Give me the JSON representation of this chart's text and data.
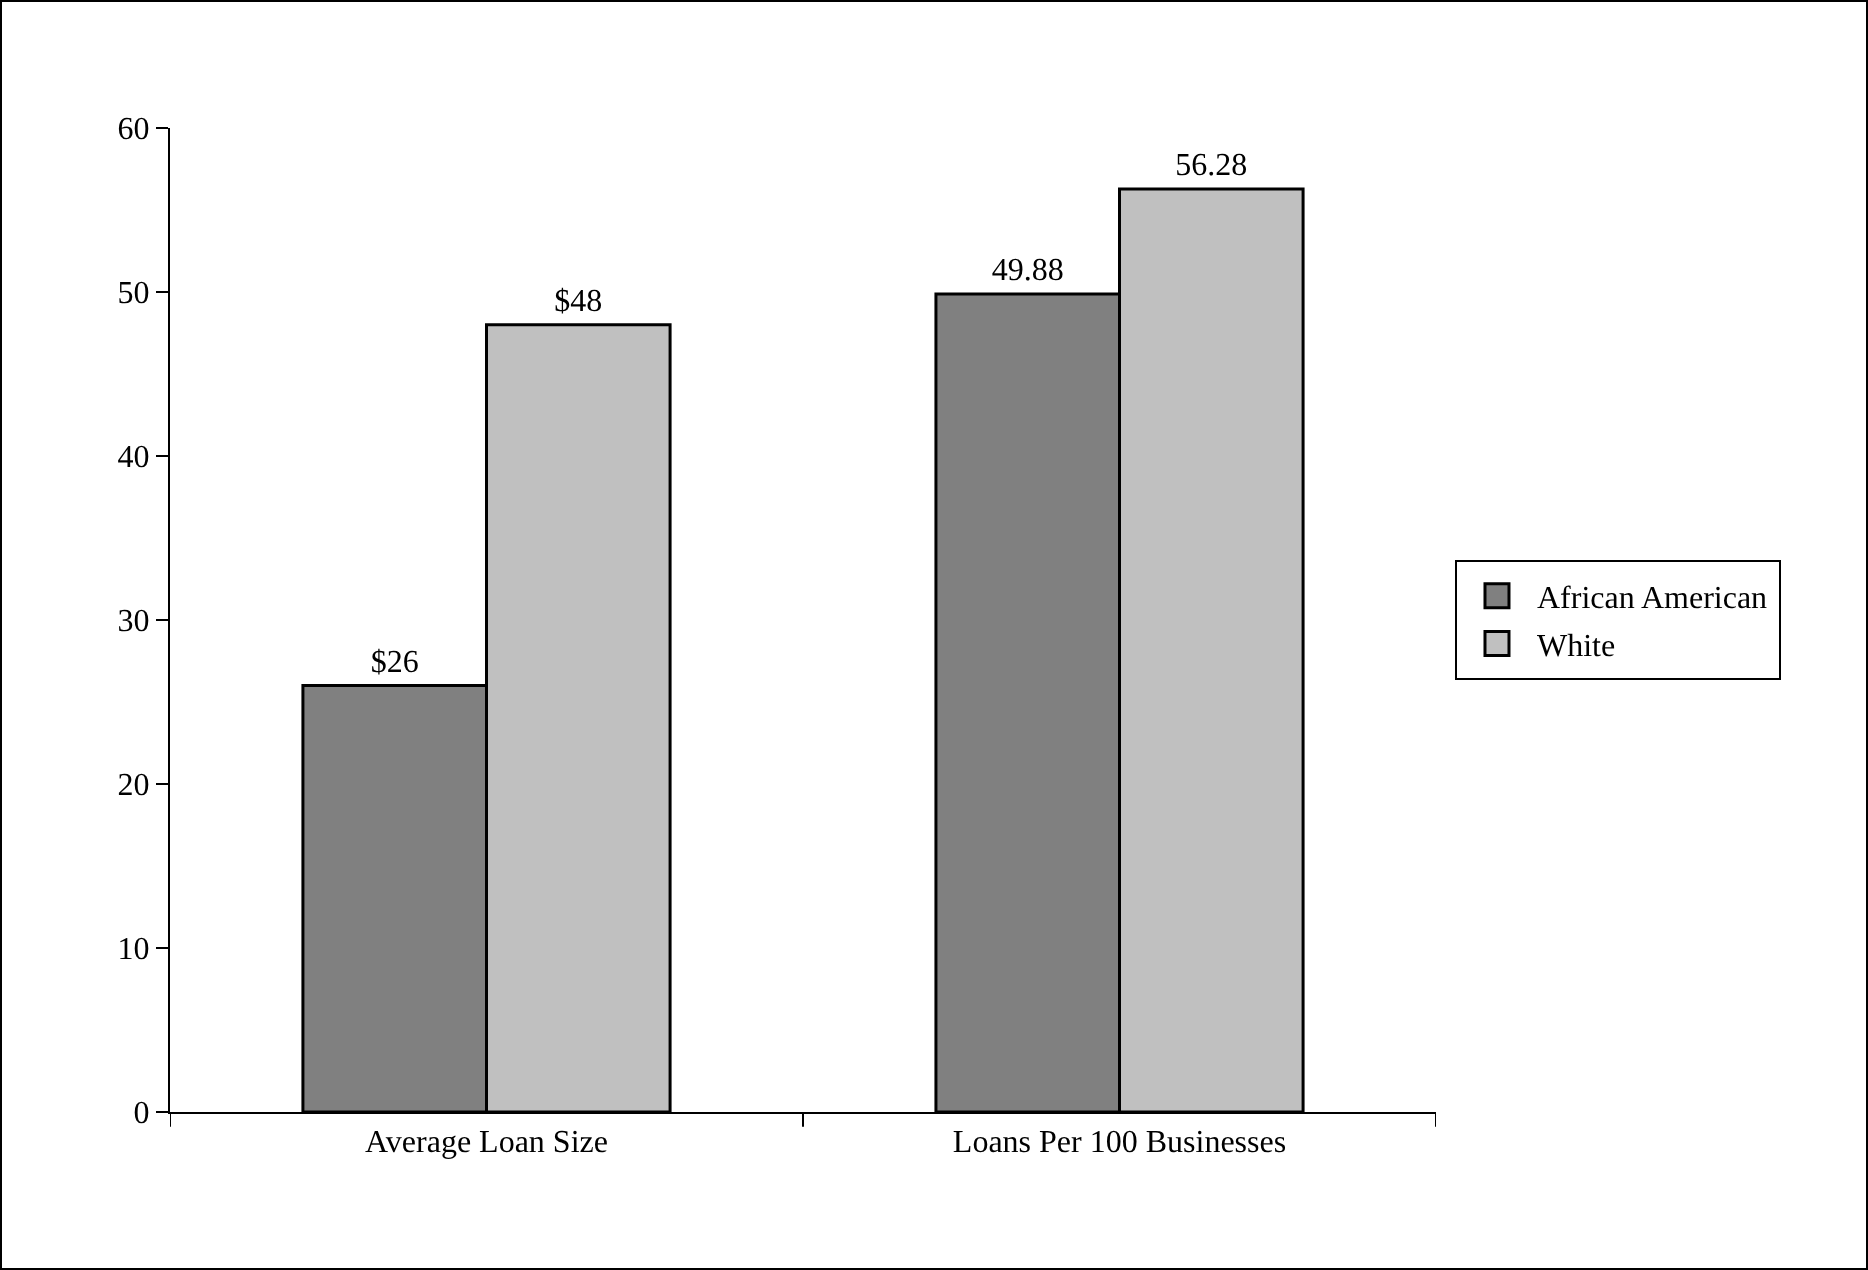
{
  "chart_data": {
    "type": "bar",
    "categories": [
      "Average Loan Size",
      "Loans Per 100 Businesses"
    ],
    "series": [
      {
        "name": "African American",
        "color": "#808080",
        "values": [
          26,
          49.88
        ],
        "value_labels": [
          "$26",
          "49.88"
        ]
      },
      {
        "name": "White",
        "color": "#c0c0c0",
        "values": [
          48,
          56.28
        ],
        "value_labels": [
          "$48",
          "56.28"
        ]
      }
    ],
    "ylim": [
      0,
      60
    ],
    "yticks": [
      0,
      10,
      20,
      30,
      40,
      50,
      60
    ],
    "grid": false,
    "legend": "right"
  }
}
